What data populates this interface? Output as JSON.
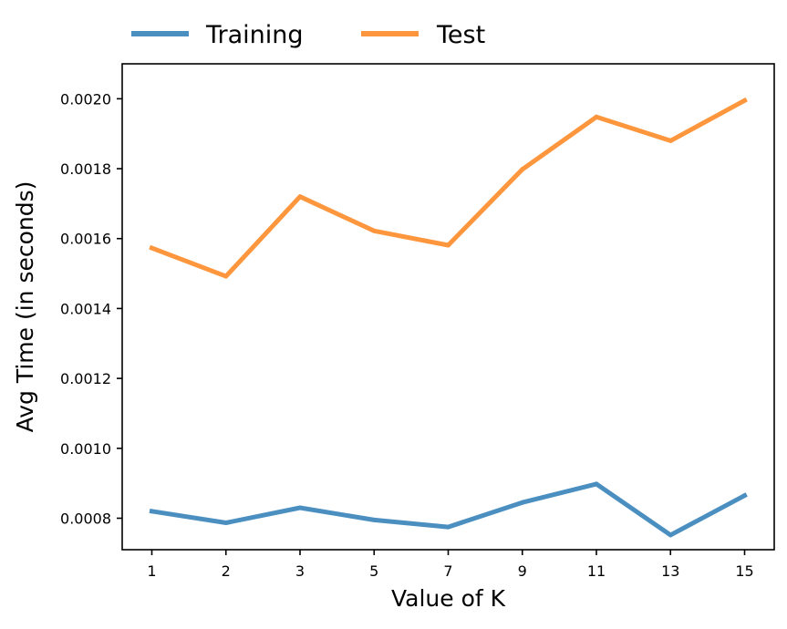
{
  "chart_data": {
    "type": "line",
    "title": "",
    "xlabel": "Value of K",
    "ylabel": "Avg Time (in seconds)",
    "categories": [
      "1",
      "2",
      "3",
      "5",
      "7",
      "9",
      "11",
      "13",
      "15"
    ],
    "ylim": [
      0.00071,
      0.0021
    ],
    "yticks": [
      "0.0008",
      "0.0010",
      "0.0012",
      "0.0014",
      "0.0016",
      "0.0018",
      "0.0020"
    ],
    "ytick_values": [
      0.0008,
      0.001,
      0.0012,
      0.0014,
      0.0016,
      0.0018,
      0.002
    ],
    "grid": false,
    "legend_position": "top-left, outside plot",
    "series": [
      {
        "name": "Training",
        "color": "#4b8fc1",
        "values": [
          0.00082,
          0.000787,
          0.00083,
          0.000795,
          0.000775,
          0.000845,
          0.000898,
          0.000752,
          0.000865
        ]
      },
      {
        "name": "Test",
        "color": "#fd963c",
        "values": [
          0.001573,
          0.001492,
          0.00172,
          0.001622,
          0.001581,
          0.001798,
          0.001948,
          0.00188,
          0.001995
        ]
      }
    ]
  }
}
